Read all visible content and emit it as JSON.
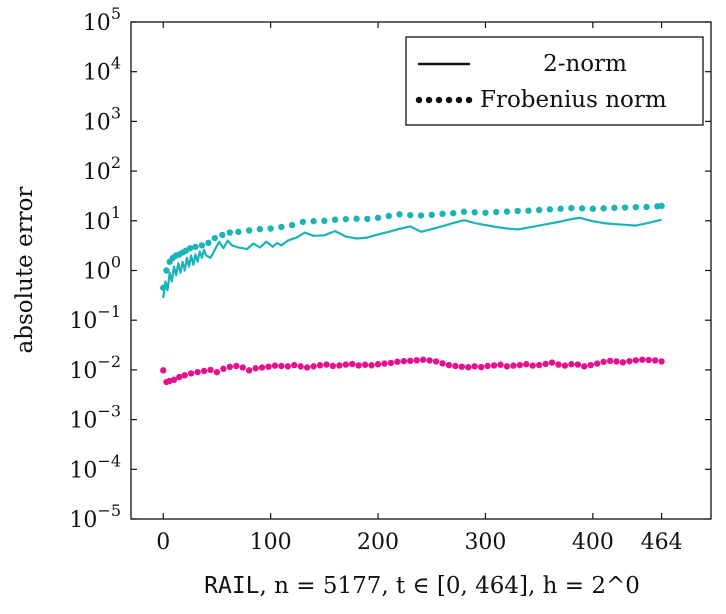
{
  "chart_data": {
    "type": "line",
    "xlabel": {
      "dataset": "RAIL",
      "text": ", n = 5177, t ∈ [0, 464], h = 2^0"
    },
    "ylabel": "absolute error",
    "x_ticks": [
      "0",
      "100",
      "200",
      "300",
      "400",
      "464"
    ],
    "x_tick_values": [
      0,
      100,
      200,
      300,
      400,
      464
    ],
    "y_scale": "log",
    "y_tick_exponents": [
      -5,
      -4,
      -3,
      -2,
      -1,
      0,
      1,
      2,
      3,
      4,
      5
    ],
    "xlim": [
      -30,
      510
    ],
    "ylim": [
      1e-05,
      100000.0
    ],
    "grid": false,
    "legend": {
      "placement": "top-right",
      "entries": [
        {
          "label": "2-norm",
          "style": "solid"
        },
        {
          "label": "Frobenius norm",
          "style": "dotted"
        }
      ]
    },
    "series": [
      {
        "color": "#1ab3b8",
        "style": "solid",
        "x": [
          0,
          2,
          4,
          6,
          8,
          10,
          12,
          14,
          16,
          18,
          20,
          22,
          24,
          26,
          28,
          30,
          32,
          34,
          36,
          38,
          40,
          44,
          48,
          52,
          56,
          60,
          64,
          70,
          78,
          84,
          90,
          96,
          102,
          106,
          110,
          116,
          124,
          132,
          140,
          150,
          160,
          170,
          180,
          190,
          200,
          210,
          220,
          230,
          240,
          250,
          260,
          270,
          280,
          290,
          300,
          310,
          320,
          330,
          340,
          350,
          360,
          370,
          380,
          388,
          394,
          400,
          410,
          420,
          430,
          440,
          450,
          464
        ],
        "y": [
          0.28,
          0.6,
          0.4,
          0.9,
          0.6,
          1.2,
          0.8,
          1.4,
          0.9,
          1.5,
          1.0,
          1.8,
          1.2,
          2.0,
          1.3,
          2.1,
          1.5,
          2.4,
          1.8,
          2.6,
          2.0,
          1.8,
          2.6,
          3.8,
          2.8,
          4.0,
          3.2,
          2.9,
          2.7,
          3.5,
          2.9,
          3.8,
          3.0,
          3.6,
          3.2,
          4.0,
          4.6,
          5.8,
          5.0,
          5.1,
          6.2,
          4.8,
          4.4,
          4.6,
          5.3,
          6.0,
          6.9,
          7.7,
          6.0,
          6.8,
          7.8,
          9.0,
          10.3,
          9.0,
          8.2,
          7.5,
          7.0,
          6.7,
          7.3,
          8.0,
          8.8,
          9.7,
          10.8,
          11.5,
          10.5,
          9.8,
          9.0,
          8.6,
          8.3,
          8.0,
          8.9,
          10.5
        ]
      },
      {
        "color": "#1ab3b8",
        "style": "dotted",
        "x": [
          0,
          3,
          6,
          9,
          12,
          15,
          18,
          21,
          25,
          30,
          36,
          42,
          48,
          55,
          62,
          70,
          80,
          90,
          100,
          110,
          120,
          130,
          140,
          150,
          160,
          170,
          180,
          190,
          200,
          210,
          220,
          230,
          240,
          250,
          260,
          270,
          280,
          290,
          300,
          310,
          320,
          330,
          340,
          350,
          360,
          370,
          380,
          390,
          400,
          410,
          420,
          430,
          440,
          450,
          460,
          464
        ],
        "y": [
          0.45,
          1.0,
          1.5,
          1.8,
          2.0,
          2.1,
          2.3,
          2.5,
          2.8,
          3.0,
          3.2,
          3.6,
          4.5,
          5.2,
          5.8,
          6.0,
          6.4,
          6.8,
          7.0,
          7.5,
          8.2,
          9.5,
          9.8,
          10.0,
          10.5,
          10.8,
          11.0,
          10.9,
          11.5,
          12.5,
          13.5,
          13.0,
          12.8,
          13.2,
          13.8,
          14.2,
          15.2,
          14.8,
          14.5,
          15.0,
          15.3,
          15.8,
          16.0,
          16.5,
          17.0,
          17.5,
          18.0,
          17.8,
          17.5,
          17.8,
          18.2,
          18.5,
          18.8,
          19.0,
          19.5,
          20.0
        ]
      },
      {
        "color": "#e6108e",
        "style": "dotted",
        "x": [
          0,
          3,
          6,
          10,
          15,
          20,
          26,
          32,
          38,
          44,
          50,
          56,
          62,
          68,
          74,
          80,
          86,
          92,
          98,
          104,
          110,
          116,
          122,
          128,
          134,
          140,
          146,
          152,
          158,
          164,
          170,
          176,
          182,
          188,
          194,
          200,
          206,
          212,
          218,
          224,
          230,
          236,
          242,
          248,
          254,
          260,
          266,
          272,
          278,
          284,
          290,
          296,
          302,
          308,
          314,
          320,
          326,
          332,
          338,
          344,
          350,
          356,
          362,
          368,
          374,
          380,
          386,
          392,
          398,
          404,
          410,
          416,
          422,
          428,
          434,
          440,
          446,
          452,
          458,
          464
        ],
        "y": [
          0.0098,
          0.0057,
          0.006,
          0.0063,
          0.0072,
          0.0078,
          0.0085,
          0.009,
          0.0095,
          0.01,
          0.009,
          0.0105,
          0.0115,
          0.012,
          0.0112,
          0.0098,
          0.0108,
          0.0112,
          0.0116,
          0.0122,
          0.012,
          0.0118,
          0.0125,
          0.0118,
          0.0112,
          0.0118,
          0.0124,
          0.0128,
          0.012,
          0.0123,
          0.0128,
          0.0131,
          0.0123,
          0.0127,
          0.0124,
          0.013,
          0.0134,
          0.0138,
          0.0146,
          0.015,
          0.0152,
          0.0156,
          0.016,
          0.0155,
          0.0148,
          0.0135,
          0.0125,
          0.012,
          0.0116,
          0.0113,
          0.0118,
          0.0114,
          0.012,
          0.0123,
          0.0127,
          0.0118,
          0.0122,
          0.0125,
          0.013,
          0.0122,
          0.0125,
          0.0132,
          0.014,
          0.0128,
          0.0122,
          0.013,
          0.0128,
          0.0118,
          0.0125,
          0.0134,
          0.0145,
          0.0152,
          0.0148,
          0.0142,
          0.015,
          0.0156,
          0.016,
          0.0158,
          0.0155,
          0.0148
        ]
      }
    ]
  }
}
